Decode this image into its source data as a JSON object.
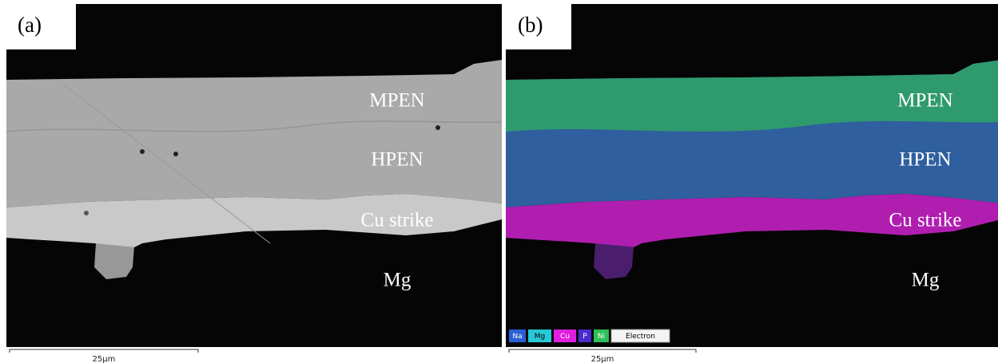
{
  "panels": [
    {
      "label": "(a)",
      "layers": [
        "MPEN",
        "HPEN",
        "Cu strike",
        "Mg"
      ],
      "scale_bar": "25μm"
    },
    {
      "label": "(b)",
      "layers": [
        "MPEN",
        "HPEN",
        "Cu strike",
        "Mg"
      ],
      "scale_bar": "25μm",
      "legend": [
        "Na",
        "Mg",
        "Cu",
        "P",
        "Ni",
        "Electron"
      ]
    }
  ]
}
